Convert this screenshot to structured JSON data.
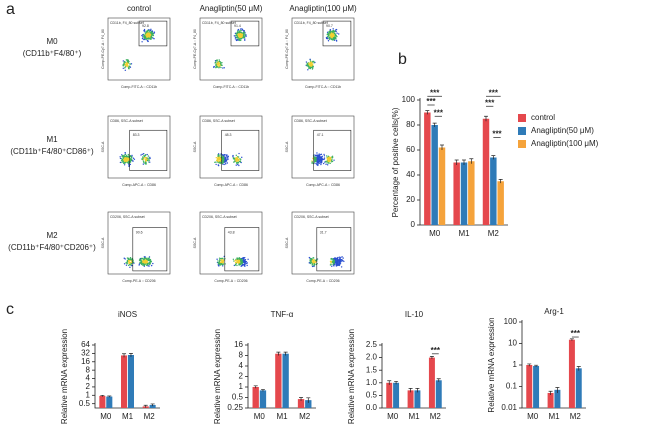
{
  "panels": {
    "a": "a",
    "b": "b",
    "c": "c"
  },
  "flow": {
    "columns": [
      "control",
      "Anagliptin(50 μM)",
      "Anagliptin(100 μM)"
    ],
    "rows": [
      {
        "label": "M0",
        "marker": "(CD11b⁺F4/80⁺)",
        "gate": "CD11b, F4_80 subset",
        "x_axis": "Comp-FITC-A :: CD11b",
        "y_axis": "Comp-PE-Cy7-A :: F4_80",
        "percents": [
          "92.8",
          "91.4",
          "90.7"
        ]
      },
      {
        "label": "M1",
        "marker": "(CD11b⁺F4/80⁺CD86⁺)",
        "gate": "CD86, SSC-A subset",
        "x_axis": "Comp-APC-A :: CD86",
        "y_axis": "SSC-A",
        "percents": [
          "83.3",
          "48.3",
          "47.1"
        ]
      },
      {
        "label": "M2",
        "marker": "(CD11b⁺F4/80⁺CD206⁺)",
        "gate": "CD206, SSC-A subset",
        "x_axis": "Comp-PE-A :: CD206",
        "y_axis": "SSC-A",
        "percents": [
          "90.6",
          "43.8",
          "31.7"
        ]
      }
    ]
  },
  "chart_data": [
    {
      "type": "bar",
      "y_label": "Percentage of positive cells(%)",
      "categories": [
        "M0",
        "M1",
        "M2"
      ],
      "series": [
        {
          "name": "control",
          "color": "#e5484d",
          "values": [
            90,
            50,
            85
          ],
          "errors": [
            1.5,
            2,
            2
          ]
        },
        {
          "name": "Anagliptin(50 μM)",
          "color": "#2f7bb8",
          "values": [
            80,
            50,
            54
          ],
          "errors": [
            1.5,
            2,
            1.5
          ]
        },
        {
          "name": "Anagliptin(100 μM)",
          "color": "#f5a33b",
          "values": [
            62,
            51,
            35
          ],
          "errors": [
            2,
            2,
            1.5
          ]
        }
      ],
      "ylim": [
        0,
        100
      ],
      "yticks": [
        0,
        20,
        40,
        60,
        80,
        100
      ],
      "legend": "right",
      "annotations": [
        "***",
        "***",
        "***",
        "***",
        "***",
        "***"
      ]
    },
    {
      "type": "bar",
      "title": "iNOS",
      "y_label": "Relative mRNA expression",
      "log": true,
      "categories": [
        "M0",
        "M1",
        "M2"
      ],
      "series": [
        {
          "color": "#e5484d",
          "values": [
            0.95,
            27,
            0.4
          ],
          "errors": [
            0.05,
            4,
            0.04
          ]
        },
        {
          "color": "#2f7bb8",
          "values": [
            0.9,
            28,
            0.45
          ],
          "errors": [
            0.05,
            4,
            0.04
          ]
        }
      ],
      "ylim": [
        0.35,
        64
      ],
      "yticks": [
        0.5,
        1,
        2,
        4,
        8,
        16,
        32,
        64
      ],
      "annotations": []
    },
    {
      "type": "bar",
      "title": "TNF-α",
      "y_label": "Relative mRNA expression",
      "log": true,
      "categories": [
        "M0",
        "M1",
        "M2"
      ],
      "series": [
        {
          "color": "#e5484d",
          "values": [
            1,
            9,
            0.45
          ],
          "errors": [
            0.08,
            1,
            0.05
          ]
        },
        {
          "color": "#2f7bb8",
          "values": [
            0.8,
            9,
            0.42
          ],
          "errors": [
            0.05,
            1,
            0.07
          ]
        }
      ],
      "ylim": [
        0.25,
        16
      ],
      "yticks": [
        0.25,
        0.5,
        1,
        2,
        4,
        8,
        16
      ],
      "annotations": []
    },
    {
      "type": "bar",
      "title": "IL-10",
      "y_label": "Relative mRNA expression",
      "log": false,
      "categories": [
        "M0",
        "M1",
        "M2"
      ],
      "series": [
        {
          "color": "#e5484d",
          "values": [
            1,
            0.7,
            2
          ],
          "errors": [
            0.08,
            0.08,
            0.05
          ]
        },
        {
          "color": "#2f7bb8",
          "values": [
            1,
            0.7,
            1.1
          ],
          "errors": [
            0.06,
            0.08,
            0.06
          ]
        }
      ],
      "ylim": [
        0,
        2.5
      ],
      "yticks": [
        {
          "value": 0,
          "label": "0.0"
        },
        0.5,
        {
          "value": 1,
          "label": "1.0"
        },
        1.5,
        {
          "value": 2,
          "label": "2.0"
        },
        2.5
      ],
      "annotations": [
        "***"
      ]
    },
    {
      "type": "bar",
      "title": "Arg-1",
      "y_label": "Relative mRNA expression",
      "log": true,
      "categories": [
        "M0",
        "M1",
        "M2"
      ],
      "series": [
        {
          "color": "#e5484d",
          "values": [
            1,
            0.05,
            15
          ],
          "errors": [
            0.12,
            0.01,
            1.5
          ]
        },
        {
          "color": "#2f7bb8",
          "values": [
            0.9,
            0.07,
            0.7
          ],
          "errors": [
            0.08,
            0.02,
            0.15
          ]
        }
      ],
      "ylim": [
        0.01,
        100
      ],
      "yticks": [
        0.01,
        0.1,
        1,
        10,
        100
      ],
      "annotations": [
        "***"
      ]
    }
  ]
}
